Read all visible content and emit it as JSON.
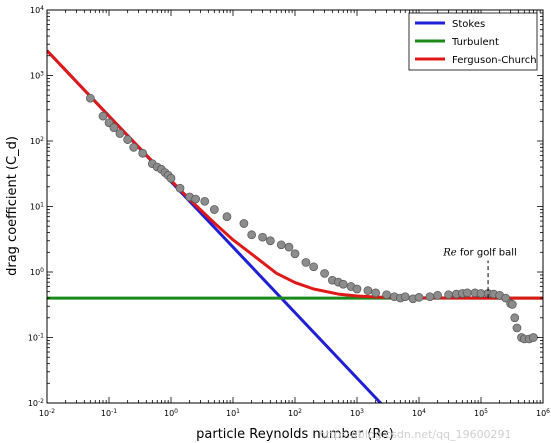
{
  "chart_data": {
    "type": "line",
    "xscale": "log",
    "yscale": "log",
    "xlim": [
      0.01,
      1000000
    ],
    "ylim": [
      0.01,
      10000
    ],
    "xlabel": "particle Reynolds number (Re)",
    "ylabel": "drag coefficient (C_d)",
    "x_ticks": [
      {
        "value": 0.01,
        "base": "10",
        "exp": "-2"
      },
      {
        "value": 0.1,
        "base": "10",
        "exp": "-1"
      },
      {
        "value": 1,
        "base": "10",
        "exp": "0"
      },
      {
        "value": 10,
        "base": "10",
        "exp": "1"
      },
      {
        "value": 100,
        "base": "10",
        "exp": "2"
      },
      {
        "value": 1000,
        "base": "10",
        "exp": "3"
      },
      {
        "value": 10000,
        "base": "10",
        "exp": "4"
      },
      {
        "value": 100000,
        "base": "10",
        "exp": "5"
      },
      {
        "value": 1000000,
        "base": "10",
        "exp": "6"
      }
    ],
    "y_ticks": [
      {
        "value": 0.01,
        "base": "10",
        "exp": "-2"
      },
      {
        "value": 0.1,
        "base": "10",
        "exp": "-1"
      },
      {
        "value": 1,
        "base": "10",
        "exp": "0"
      },
      {
        "value": 10,
        "base": "10",
        "exp": "1"
      },
      {
        "value": 100,
        "base": "10",
        "exp": "2"
      },
      {
        "value": 1000,
        "base": "10",
        "exp": "3"
      },
      {
        "value": 10000,
        "base": "10",
        "exp": "4"
      }
    ],
    "series": [
      {
        "name": "Stokes",
        "color": "#1f1fd6",
        "kind": "line",
        "x": [
          0.01,
          2500
        ],
        "y": [
          2400,
          0.0096
        ]
      },
      {
        "name": "Turbulent",
        "color": "#1a8a1a",
        "kind": "line",
        "x": [
          0.01,
          1000000
        ],
        "y": [
          0.4,
          0.4
        ]
      },
      {
        "name": "Ferguson-Church",
        "color": "#e01818",
        "kind": "line",
        "x": [
          0.01,
          0.02,
          0.05,
          0.1,
          0.2,
          0.5,
          1,
          2,
          5,
          10,
          20,
          50,
          100,
          200,
          500,
          1000,
          2000,
          5000,
          10000,
          100000,
          1000000
        ],
        "y": [
          2400,
          1200,
          480,
          240,
          121,
          49,
          25,
          12.8,
          5.6,
          3.1,
          1.88,
          0.96,
          0.69,
          0.55,
          0.46,
          0.43,
          0.415,
          0.405,
          0.402,
          0.4,
          0.4
        ]
      },
      {
        "name": "",
        "color": "#8c8c8c",
        "kind": "scatter",
        "x": [
          0.05,
          0.08,
          0.1,
          0.12,
          0.15,
          0.2,
          0.25,
          0.35,
          0.5,
          0.6,
          0.7,
          0.8,
          0.9,
          1,
          1.4,
          2,
          2.5,
          3.5,
          5,
          8,
          15,
          20,
          30,
          40,
          60,
          80,
          100,
          150,
          200,
          300,
          400,
          500,
          600,
          800,
          1000,
          1500,
          2000,
          3000,
          4000,
          5000,
          6000,
          8000,
          10000,
          15000,
          20000,
          30000,
          40000,
          50000,
          60000,
          80000,
          100000,
          130000,
          160000,
          200000,
          250000,
          300000,
          320000,
          350000,
          380000,
          450000,
          500000,
          600000,
          700000
        ],
        "y": [
          450,
          240,
          190,
          160,
          130,
          105,
          80,
          65,
          45,
          40,
          37,
          33,
          30,
          27,
          19,
          14,
          13,
          12,
          9,
          7,
          5.5,
          3.7,
          3.4,
          3.0,
          2.6,
          2.4,
          1.9,
          1.4,
          1.2,
          0.95,
          0.75,
          0.7,
          0.65,
          0.6,
          0.55,
          0.52,
          0.48,
          0.45,
          0.42,
          0.4,
          0.42,
          0.39,
          0.41,
          0.42,
          0.44,
          0.45,
          0.46,
          0.47,
          0.48,
          0.48,
          0.47,
          0.47,
          0.46,
          0.44,
          0.4,
          0.33,
          0.32,
          0.2,
          0.14,
          0.1,
          0.095,
          0.095,
          0.1
        ]
      }
    ],
    "annotation": {
      "label_re": "Re",
      "label_rest": " for golf ball",
      "x": 130000,
      "y_from": 0.4,
      "y_to": 1.5
    },
    "legend_position": "upper right",
    "grid": false
  },
  "watermark": "https://blog.csdn.net/qq_19600291"
}
